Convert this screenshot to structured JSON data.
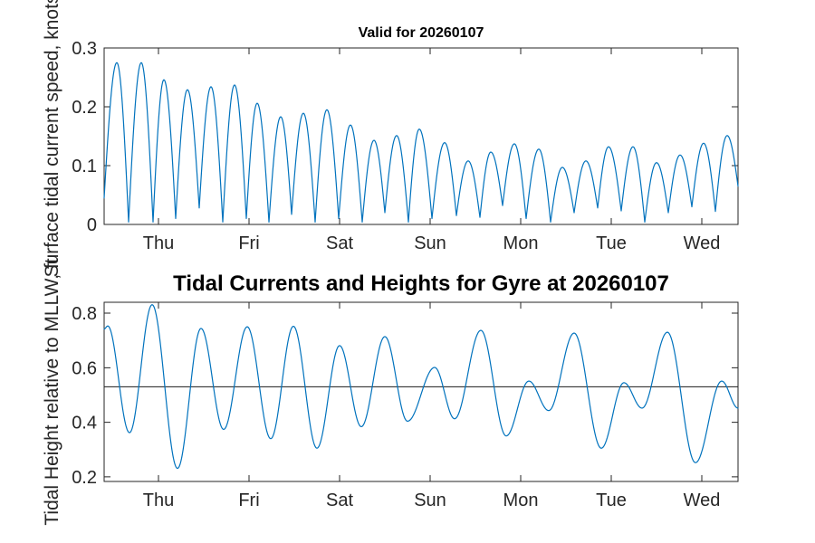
{
  "figure": {
    "background": "#ffffff",
    "axis_color": "#262626",
    "line_color": "#0072BD",
    "ref_line_color": "#1a1a1a"
  },
  "chart_data": [
    {
      "id": "surface_current_speed",
      "type": "line",
      "title": "Valid for 20260107",
      "ylabel": "Surface tidal current speed, knots",
      "xticklabels": [
        "Thu",
        "Fri",
        "Sat",
        "Sun",
        "Mon",
        "Tue",
        "Wed"
      ],
      "xticks_days": [
        0,
        1,
        2,
        3,
        4,
        5,
        6
      ],
      "xlim_days": [
        -0.6,
        6.4
      ],
      "ylim": [
        0,
        0.3
      ],
      "yticks": [
        0,
        0.1,
        0.2,
        0.3
      ],
      "ytick_labels": [
        "0",
        "0.1",
        "0.2",
        "0.3"
      ],
      "line_color": "#0072BD",
      "shape": "cusp",
      "grid": false,
      "legend": null,
      "extrema_t_days": [
        -0.6,
        -0.46,
        -0.33,
        -0.19,
        -0.06,
        0.06,
        0.19,
        0.32,
        0.45,
        0.58,
        0.71,
        0.84,
        0.97,
        1.09,
        1.22,
        1.35,
        1.47,
        1.6,
        1.73,
        1.86,
        1.99,
        2.12,
        2.25,
        2.38,
        2.5,
        2.63,
        2.76,
        2.88,
        3.02,
        3.16,
        3.29,
        3.42,
        3.55,
        3.67,
        3.8,
        3.93,
        4.06,
        4.2,
        4.33,
        4.46,
        4.59,
        4.72,
        4.85,
        4.97,
        5.11,
        5.24,
        5.37,
        5.5,
        5.63,
        5.76,
        5.89,
        6.02,
        6.15,
        6.28,
        6.4
      ],
      "extrema_values_knots": [
        0.045,
        0.275,
        0.004,
        0.275,
        0.004,
        0.246,
        0.01,
        0.229,
        0.028,
        0.234,
        0.004,
        0.237,
        0.01,
        0.206,
        0.004,
        0.183,
        0.017,
        0.189,
        0.004,
        0.195,
        0.01,
        0.169,
        0.004,
        0.143,
        0.02,
        0.151,
        0.004,
        0.162,
        0.01,
        0.139,
        0.015,
        0.108,
        0.012,
        0.123,
        0.032,
        0.137,
        0.01,
        0.128,
        0.004,
        0.097,
        0.02,
        0.108,
        0.028,
        0.132,
        0.023,
        0.132,
        0.004,
        0.105,
        0.02,
        0.118,
        0.03,
        0.138,
        0.022,
        0.151,
        0.065
      ]
    },
    {
      "id": "tidal_height",
      "type": "line",
      "title": "Tidal Currents and Heights for Gyre at 20260107",
      "ylabel": "Tidal Height relative to MLLW, ft",
      "xticklabels": [
        "Thu",
        "Fri",
        "Sat",
        "Sun",
        "Mon",
        "Tue",
        "Wed"
      ],
      "xticks_days": [
        0,
        1,
        2,
        3,
        4,
        5,
        6
      ],
      "xlim_days": [
        -0.6,
        6.4
      ],
      "ylim": [
        0.183,
        0.84
      ],
      "yticks": [
        0.2,
        0.4,
        0.6,
        0.8
      ],
      "ytick_labels": [
        "0.2",
        "0.4",
        "0.6",
        "0.8"
      ],
      "line_color": "#0072BD",
      "shape": "smooth",
      "grid": false,
      "legend": null,
      "ref_line_value": 0.53,
      "extrema_t_days": [
        -0.6,
        -0.56,
        -0.32,
        -0.07,
        0.21,
        0.47,
        0.72,
        0.98,
        1.24,
        1.49,
        1.75,
        2.0,
        2.24,
        2.5,
        2.75,
        3.05,
        3.27,
        3.56,
        3.84,
        4.09,
        4.31,
        4.59,
        4.89,
        5.14,
        5.34,
        5.62,
        5.93,
        6.22,
        6.4
      ],
      "extrema_values_ft": [
        0.742,
        0.753,
        0.362,
        0.831,
        0.231,
        0.744,
        0.374,
        0.75,
        0.34,
        0.752,
        0.305,
        0.681,
        0.384,
        0.714,
        0.404,
        0.601,
        0.413,
        0.737,
        0.35,
        0.551,
        0.443,
        0.727,
        0.305,
        0.545,
        0.452,
        0.73,
        0.252,
        0.551,
        0.452
      ]
    }
  ]
}
